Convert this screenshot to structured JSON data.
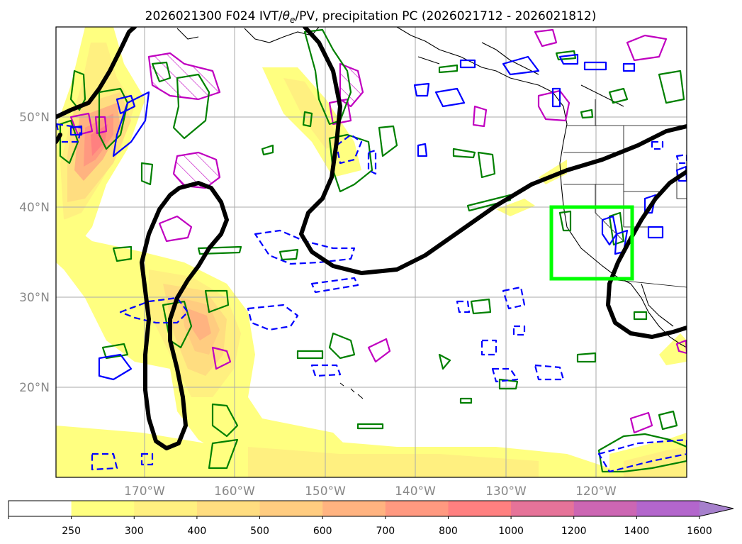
{
  "title": {
    "prefix": "2026021300 F024 IVT/",
    "theta": "θ",
    "theta_sub": "e",
    "suffix": "/PV, precipitation PC (2026021712 - 2026021812)"
  },
  "map": {
    "lat_labels": [
      "50°N",
      "40°N",
      "30°N",
      "20°N"
    ],
    "lon_labels": [
      "170°W",
      "160°W",
      "150°W",
      "140°W",
      "130°W",
      "120°W"
    ],
    "focus_box_color": "#00ff00",
    "jet_color": "#000000",
    "contour_colors": {
      "green": "#008000",
      "blue": "#0000ff",
      "magenta": "#c000c0"
    }
  },
  "colorbar": {
    "ticks": [
      "250",
      "300",
      "400",
      "500",
      "600",
      "700",
      "800",
      "1000",
      "1200",
      "1400",
      "1600"
    ],
    "colors": [
      "#ffffff",
      "#ffff80",
      "#fff080",
      "#ffdd80",
      "#ffcc80",
      "#ffb380",
      "#ff9980",
      "#ff8080",
      "#e67399",
      "#cc66b3",
      "#b366cc",
      "#a680cc"
    ]
  }
}
